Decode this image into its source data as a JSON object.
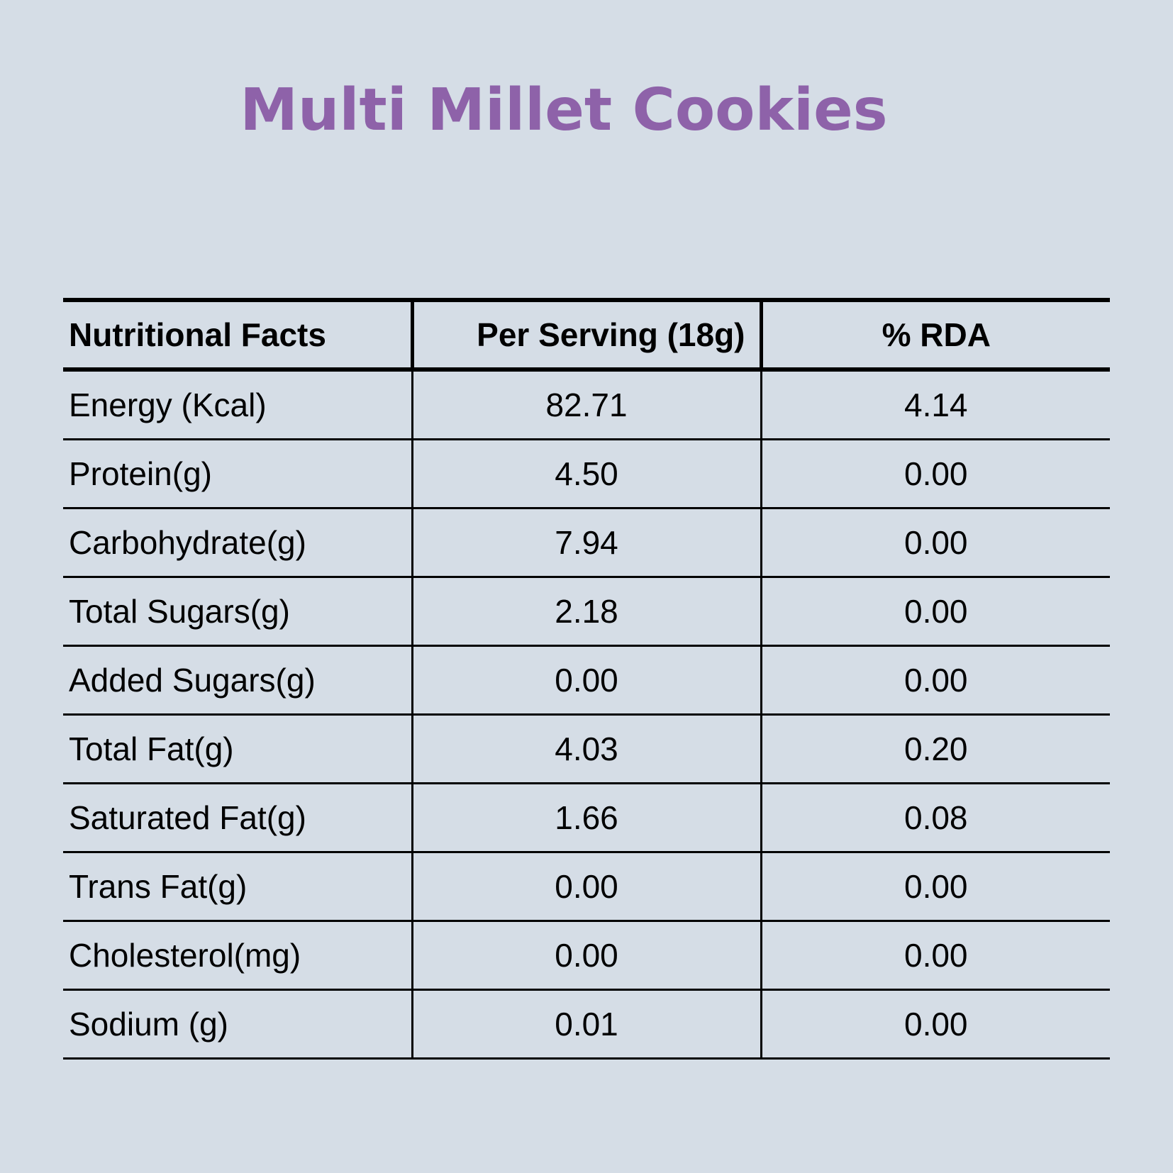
{
  "title": "Multi Millet Cookies",
  "table": {
    "headers": [
      "Nutritional Facts",
      "Per Serving (18g)",
      "% RDA"
    ],
    "rows": [
      {
        "nutrient": "Energy (Kcal)",
        "per_serving": "82.71",
        "rda": "4.14"
      },
      {
        "nutrient": "Protein(g)",
        "per_serving": "4.50",
        "rda": "0.00"
      },
      {
        "nutrient": "Carbohydrate(g)",
        "per_serving": "7.94",
        "rda": "0.00"
      },
      {
        "nutrient": "Total Sugars(g)",
        "per_serving": "2.18",
        "rda": "0.00"
      },
      {
        "nutrient": "Added Sugars(g)",
        "per_serving": "0.00",
        "rda": "0.00"
      },
      {
        "nutrient": "Total Fat(g)",
        "per_serving": "4.03",
        "rda": "0.20"
      },
      {
        "nutrient": "Saturated Fat(g)",
        "per_serving": "1.66",
        "rda": "0.08"
      },
      {
        "nutrient": "Trans Fat(g)",
        "per_serving": "0.00",
        "rda": "0.00"
      },
      {
        "nutrient": "Cholesterol(mg)",
        "per_serving": "0.00",
        "rda": "0.00"
      },
      {
        "nutrient": "Sodium (g)",
        "per_serving": "0.01",
        "rda": "0.00"
      }
    ]
  },
  "colors": {
    "background": "#d5dde6",
    "title": "#8e62a9",
    "text": "#000000"
  }
}
